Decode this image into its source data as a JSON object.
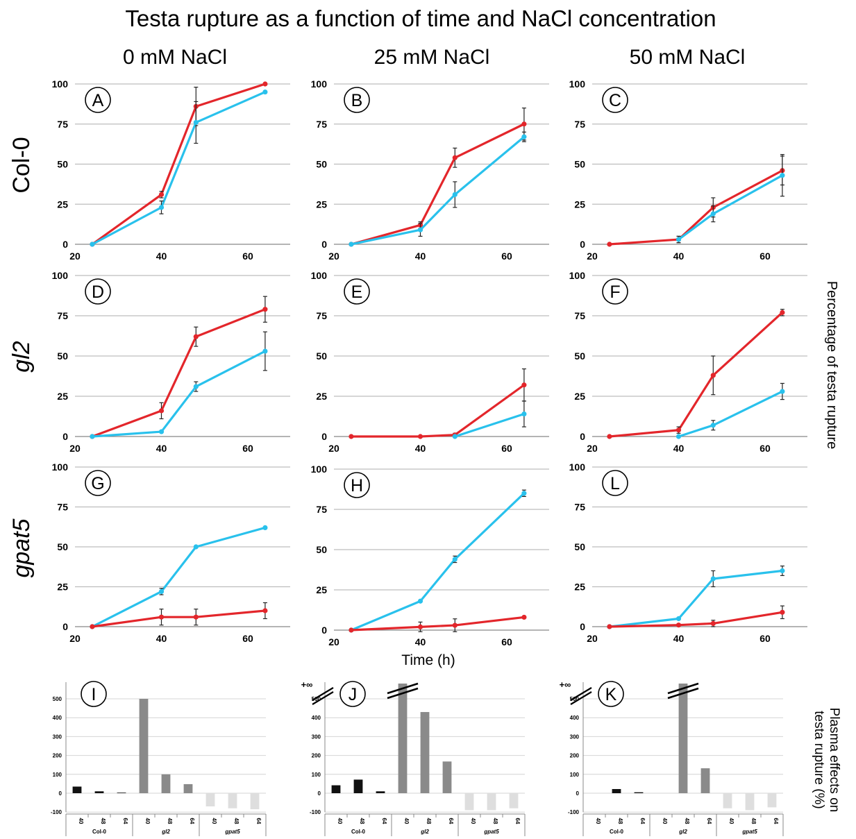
{
  "title": "Testa rupture as a function of time and NaCl concentration",
  "columns": [
    "0 mM NaCl",
    "25 mM NaCl",
    "50 mM NaCl"
  ],
  "rows": [
    "Col-0",
    "gl2",
    "gpat5"
  ],
  "y_label_lines": [
    "Percentage of testa rupture"
  ],
  "x_label": "Time (h)",
  "bar_label_lines": [
    "Plasma effects on",
    "testa rupture (%)"
  ],
  "infinity_label": "+∞",
  "colors": {
    "red": "#e3262b",
    "blue": "#29c1ec",
    "grid": "#bdbdbd",
    "col0_bar": "#111111",
    "gl2_bar": "#8a8a8a",
    "gpat5_bar": "#dedede"
  },
  "chart_data": [
    {
      "type": "line",
      "panel": "A",
      "xticks": [
        20,
        40,
        60
      ],
      "ylim": [
        0,
        100
      ],
      "yticks": [
        0,
        25,
        50,
        75,
        100
      ],
      "series": [
        {
          "color": "red",
          "x": [
            24,
            40,
            48,
            64
          ],
          "y": [
            0,
            31,
            86,
            100
          ],
          "err": [
            0,
            2,
            12,
            0
          ]
        },
        {
          "color": "blue",
          "x": [
            24,
            40,
            48,
            64
          ],
          "y": [
            0,
            23,
            76,
            95
          ],
          "err": [
            0,
            4,
            13,
            0
          ]
        }
      ]
    },
    {
      "type": "line",
      "panel": "B",
      "xticks": [
        20,
        40,
        60
      ],
      "ylim": [
        0,
        100
      ],
      "yticks": [
        0,
        25,
        50,
        75,
        100
      ],
      "series": [
        {
          "color": "red",
          "x": [
            24,
            40,
            48,
            64
          ],
          "y": [
            0,
            12,
            54,
            75
          ],
          "err": [
            0,
            2,
            6,
            10
          ]
        },
        {
          "color": "blue",
          "x": [
            24,
            40,
            48,
            64
          ],
          "y": [
            0,
            9,
            31,
            67
          ],
          "err": [
            0,
            4,
            8,
            3
          ]
        }
      ]
    },
    {
      "type": "line",
      "panel": "C",
      "xticks": [
        20,
        40,
        60
      ],
      "ylim": [
        0,
        100
      ],
      "yticks": [
        0,
        25,
        50,
        75,
        100
      ],
      "series": [
        {
          "color": "red",
          "x": [
            24,
            40,
            48,
            64
          ],
          "y": [
            0,
            3,
            23,
            46
          ],
          "err": [
            0,
            2,
            6,
            9
          ]
        },
        {
          "color": "blue",
          "x": [
            40,
            48,
            64
          ],
          "y": [
            3,
            19,
            43
          ],
          "err": [
            2,
            5,
            13
          ]
        }
      ]
    },
    {
      "type": "line",
      "panel": "D",
      "xticks": [
        20,
        40,
        60
      ],
      "ylim": [
        0,
        100
      ],
      "yticks": [
        0,
        25,
        50,
        75,
        100
      ],
      "series": [
        {
          "color": "red",
          "x": [
            24,
            40,
            48,
            64
          ],
          "y": [
            0,
            16,
            62,
            79
          ],
          "err": [
            0,
            5,
            6,
            8
          ]
        },
        {
          "color": "blue",
          "x": [
            24,
            40,
            48,
            64
          ],
          "y": [
            0,
            3,
            31,
            53
          ],
          "err": [
            0,
            0,
            3,
            12
          ]
        }
      ]
    },
    {
      "type": "line",
      "panel": "E",
      "xticks": [
        20,
        40,
        60
      ],
      "ylim": [
        0,
        100
      ],
      "yticks": [
        0,
        25,
        50,
        75,
        100
      ],
      "series": [
        {
          "color": "red",
          "x": [
            24,
            40,
            48,
            64
          ],
          "y": [
            0,
            0,
            1,
            32
          ],
          "err": [
            0,
            0,
            1,
            10
          ]
        },
        {
          "color": "blue",
          "x": [
            48,
            64
          ],
          "y": [
            0,
            14
          ],
          "err": [
            0,
            8
          ]
        }
      ]
    },
    {
      "type": "line",
      "panel": "F",
      "xticks": [
        20,
        40,
        60
      ],
      "ylim": [
        0,
        100
      ],
      "yticks": [
        0,
        25,
        50,
        75,
        100
      ],
      "series": [
        {
          "color": "red",
          "x": [
            24,
            40,
            48,
            64
          ],
          "y": [
            0,
            4,
            38,
            77
          ],
          "err": [
            0,
            2,
            12,
            2
          ]
        },
        {
          "color": "blue",
          "x": [
            40,
            48,
            64
          ],
          "y": [
            0,
            7,
            28
          ],
          "err": [
            0,
            3,
            5
          ]
        }
      ]
    },
    {
      "type": "line",
      "panel": "G",
      "xticks": [
        20,
        40,
        60
      ],
      "ylim": [
        0,
        100
      ],
      "yticks": [
        0,
        25,
        50,
        75,
        100
      ],
      "series": [
        {
          "color": "blue",
          "x": [
            24,
            40,
            48,
            64
          ],
          "y": [
            0,
            22,
            50,
            62
          ],
          "err": [
            0,
            2,
            0,
            0
          ]
        },
        {
          "color": "red",
          "x": [
            24,
            40,
            48,
            64
          ],
          "y": [
            0,
            6,
            6,
            10
          ],
          "err": [
            0,
            5,
            5,
            5
          ]
        }
      ]
    },
    {
      "type": "line",
      "panel": "H",
      "xticks": [
        20,
        40,
        60
      ],
      "ylim": [
        0,
        100
      ],
      "yticks": [
        0,
        25,
        50,
        75,
        100
      ],
      "series": [
        {
          "color": "blue",
          "x": [
            24,
            40,
            48,
            64
          ],
          "y": [
            0,
            18,
            44,
            85
          ],
          "err": [
            0,
            0,
            2,
            2
          ]
        },
        {
          "color": "red",
          "x": [
            24,
            40,
            48,
            64
          ],
          "y": [
            0,
            2,
            3,
            8
          ],
          "err": [
            0,
            3,
            4,
            0
          ]
        }
      ]
    },
    {
      "type": "line",
      "panel": "L",
      "xticks": [
        20,
        40,
        60
      ],
      "ylim": [
        0,
        100
      ],
      "yticks": [
        0,
        25,
        50,
        75,
        100
      ],
      "series": [
        {
          "color": "blue",
          "x": [
            24,
            40,
            48,
            64
          ],
          "y": [
            0,
            5,
            30,
            35
          ],
          "err": [
            0,
            0,
            5,
            3
          ]
        },
        {
          "color": "red",
          "x": [
            24,
            40,
            48,
            64
          ],
          "y": [
            0,
            1,
            2,
            9
          ],
          "err": [
            0,
            0,
            2,
            4
          ]
        }
      ]
    },
    {
      "type": "bar",
      "panel": "I",
      "ylim": [
        -100,
        600
      ],
      "yticks": [
        -100,
        0,
        100,
        200,
        300,
        400,
        500,
        600
      ],
      "categories": [
        "40",
        "48",
        "64",
        "40",
        "48",
        "64",
        "40",
        "48",
        "64"
      ],
      "groups": [
        "Col-0",
        "gl2",
        "gpat5"
      ],
      "values": [
        35,
        10,
        3,
        500,
        100,
        48,
        -70,
        -80,
        -85
      ],
      "broken": [
        false,
        false,
        false,
        false,
        false,
        false,
        false,
        false,
        false
      ]
    },
    {
      "type": "bar",
      "panel": "J",
      "ylim": [
        -100,
        550
      ],
      "yticks": [
        -100,
        0,
        100,
        200,
        300,
        400,
        500
      ],
      "categories": [
        "40",
        "48",
        "64",
        "40",
        "48",
        "64",
        "40",
        "48",
        "64"
      ],
      "groups": [
        "Col-0",
        "gl2",
        "gpat5"
      ],
      "values": [
        42,
        72,
        10,
        "+∞",
        430,
        168,
        -90,
        -90,
        -80
      ],
      "broken": [
        false,
        false,
        false,
        true,
        false,
        false,
        false,
        false,
        false
      ]
    },
    {
      "type": "bar",
      "panel": "K",
      "ylim": [
        -100,
        550
      ],
      "yticks": [
        -100,
        0,
        100,
        200,
        300,
        400,
        500
      ],
      "categories": [
        "40",
        "48",
        "64",
        "40",
        "48",
        "64",
        "40",
        "48",
        "64"
      ],
      "groups": [
        "Col-0",
        "gl2",
        "gpat5"
      ],
      "values": [
        null,
        22,
        5,
        null,
        "+∞",
        132,
        -80,
        -90,
        -75
      ],
      "broken": [
        false,
        false,
        false,
        false,
        true,
        false,
        false,
        false,
        false
      ]
    }
  ]
}
